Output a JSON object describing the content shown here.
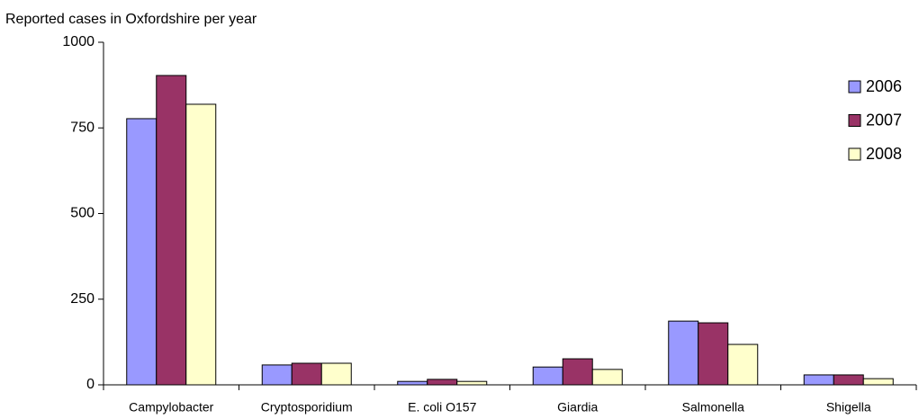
{
  "chart_data": {
    "type": "bar",
    "y_label": "Reported cases in Oxfordshire per year",
    "categories": [
      "Campylobacter",
      "Cryptosporidium",
      "E. coli O157",
      "Giardia",
      "Salmonella",
      "Shigella"
    ],
    "series": [
      {
        "name": "2006",
        "color": "#9999ff",
        "values": [
          777,
          58,
          10,
          52,
          186,
          29
        ]
      },
      {
        "name": "2007",
        "color": "#993366",
        "values": [
          903,
          63,
          16,
          76,
          181,
          29
        ]
      },
      {
        "name": "2008",
        "color": "#ffffcc",
        "values": [
          819,
          63,
          10,
          45,
          118,
          18
        ]
      }
    ],
    "ylim": [
      0,
      1000
    ],
    "yticks": [
      0,
      250,
      500,
      750,
      1000
    ],
    "grid": false,
    "legend": "right"
  }
}
